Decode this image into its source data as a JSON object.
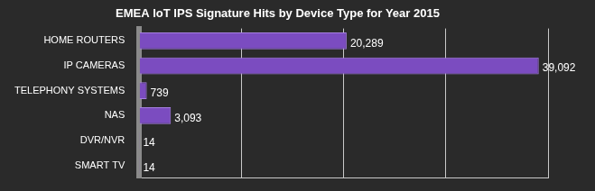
{
  "chart_data": {
    "type": "bar",
    "title": "EMEA IoT IPS Signature Hits by Device Type for Year 2015",
    "orientation": "horizontal",
    "categories": [
      "HOME ROUTERS",
      "IP CAMERAS",
      "TELEPHONY SYSTEMS",
      "NAS",
      "DVR/NVR",
      "SMART TV"
    ],
    "values": [
      20289,
      39092,
      739,
      3093,
      14,
      14
    ],
    "value_labels": [
      "20,289",
      "39,092",
      "739",
      "3,093",
      "14",
      "14"
    ],
    "color": "#7b4cc0",
    "xlim": [
      0,
      40000
    ],
    "xticks": [
      0,
      10000,
      20000,
      30000,
      40000
    ],
    "grid": true,
    "data_labels": true,
    "tick_labels": "y"
  }
}
